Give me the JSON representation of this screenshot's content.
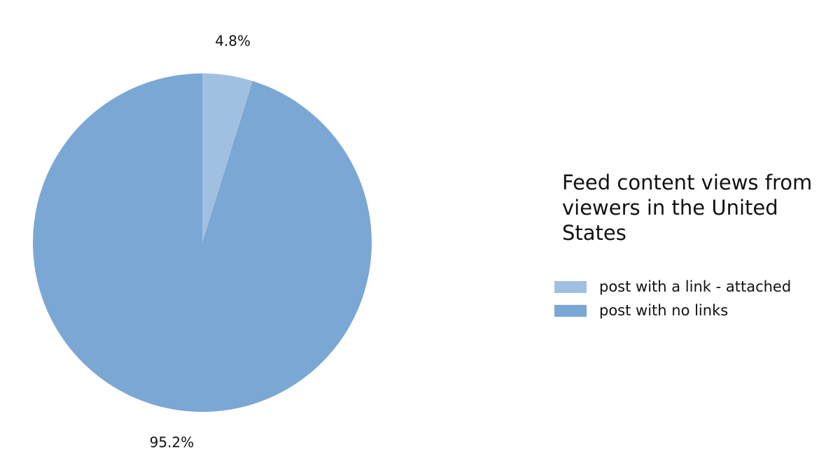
{
  "chart_data": {
    "type": "pie",
    "legend_title": "Feed content views from viewers in the United States",
    "legend_position": "right",
    "slices": [
      {
        "label": "post with a link - attached",
        "value": 4.8,
        "display": "4.8%",
        "color": "#a0c0e1"
      },
      {
        "label": "post with no links",
        "value": 95.2,
        "display": "95.2%",
        "color": "#7ba7d4"
      }
    ],
    "start_angle": "12 o'clock",
    "direction": "clockwise"
  }
}
